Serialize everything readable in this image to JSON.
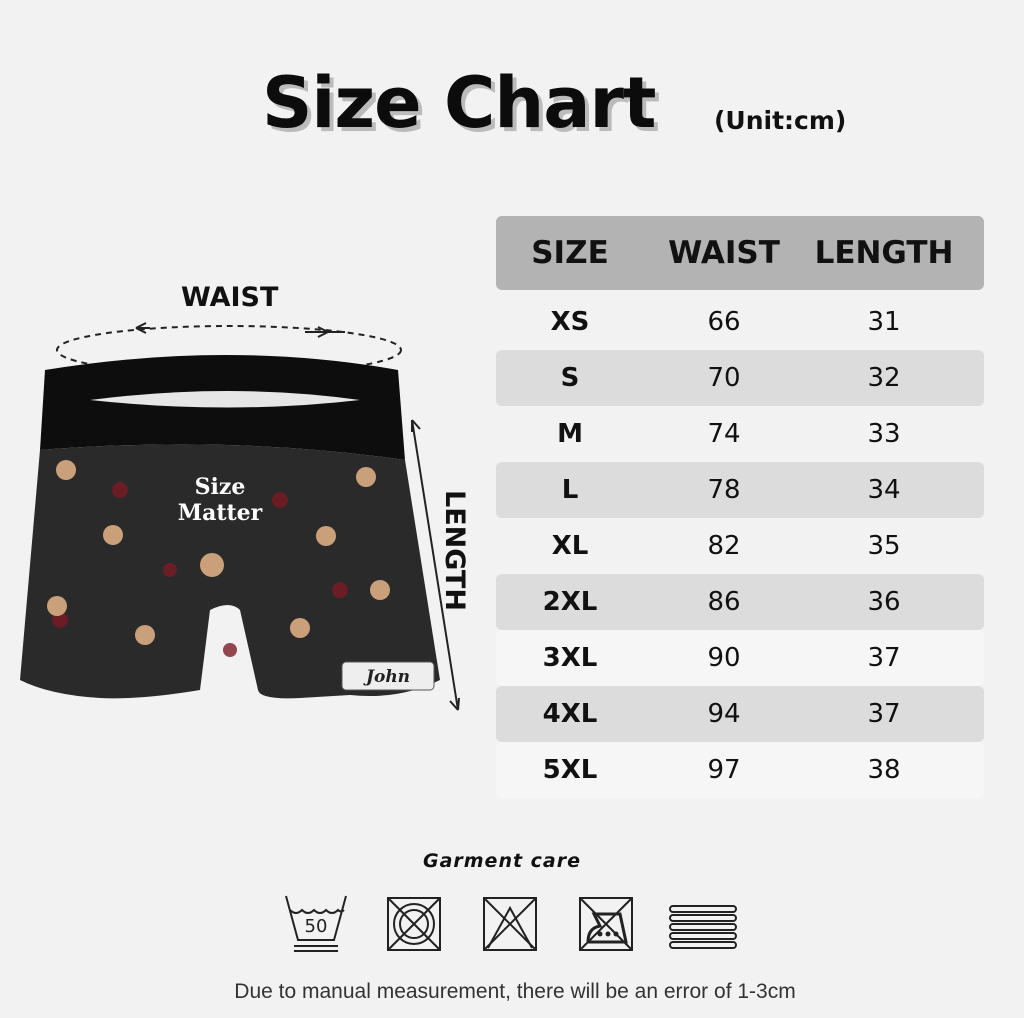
{
  "title": "Size Chart",
  "unit": "(Unit:cm)",
  "diagram": {
    "waist_label": "WAIST",
    "length_label": "LENGTH",
    "print_text_line1": "Size",
    "print_text_line2": "Matter",
    "name_tag": "John"
  },
  "table": {
    "headers": [
      "SIZE",
      "WAIST",
      "LENGTH"
    ],
    "rows": [
      [
        "XS",
        "66",
        "31"
      ],
      [
        "S",
        "70",
        "32"
      ],
      [
        "M",
        "74",
        "33"
      ],
      [
        "L",
        "78",
        "34"
      ],
      [
        "XL",
        "82",
        "35"
      ],
      [
        "2XL",
        "86",
        "36"
      ],
      [
        "3XL",
        "90",
        "37"
      ],
      [
        "4XL",
        "94",
        "37"
      ],
      [
        "5XL",
        "97",
        "38"
      ]
    ]
  },
  "care": {
    "title": "Garment care",
    "wash_temp": "50",
    "icons": [
      "wash-50-icon",
      "do-not-tumble-dry-icon",
      "do-not-bleach-icon",
      "do-not-iron-icon",
      "dry-flat-icon"
    ]
  },
  "note": "Due to manual measurement, there will be an error of 1-3cm"
}
